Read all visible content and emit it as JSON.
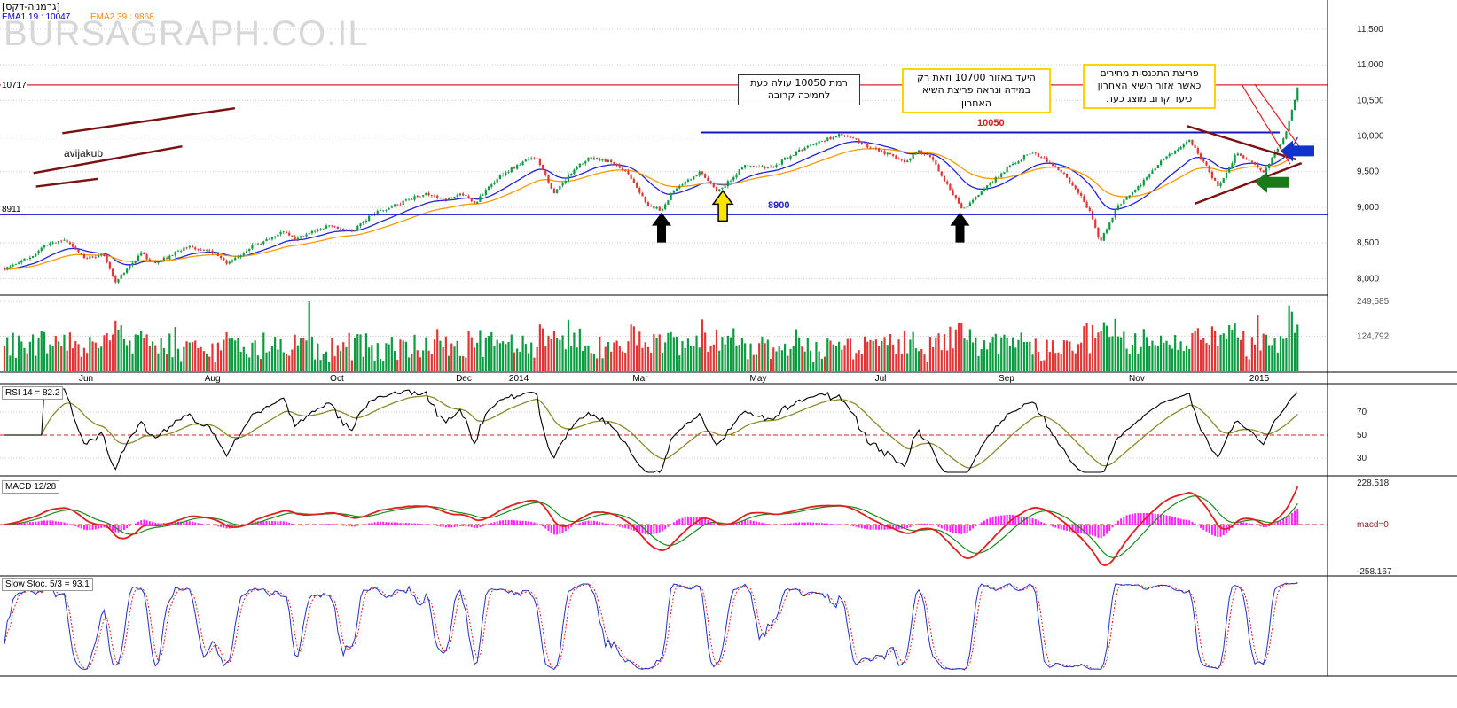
{
  "header": {
    "instrument": "[גרמניה-דקס]",
    "ema1": "EMA1 19 : 10047",
    "ema2": "EMA2 39 : 9868"
  },
  "watermark": "BURSAGRAPH.CO.IL",
  "author_tag": "avijakub",
  "annotation_boxes": {
    "support_note": "רמת 10050 עולה כעת\nלתמיכה קרובה",
    "target_note": "היעד באזור 10700 וזאת רק\nבמידה ונראה פריצת השיא\nהאחרון",
    "breakout_note": "פריצת התכנסות מחירים\nכאשר אזור השיא האחרון\nכיעד קרוב מוצג כעת"
  },
  "price_labels": {
    "resistance_tag": "10717",
    "support_tag": "8911",
    "level_10050": "10050",
    "level_8900": "8900"
  },
  "panel_labels": {
    "rsi": "RSI 14 = 82.2",
    "macd": "MACD 12/28",
    "stoch": "Slow Stoc. 5/3 = 93.1"
  },
  "chart_data": {
    "type": "candlestick",
    "instrument": "Germany DAX (גרמניה-דקס)",
    "indicators": {
      "ema1": {
        "period": 19,
        "last": 10047
      },
      "ema2": {
        "period": 39,
        "last": 9868
      },
      "rsi": {
        "period": 14,
        "last": 82.2,
        "levels": [
          70,
          50,
          30
        ]
      },
      "macd": {
        "fast": 12,
        "slow": 28,
        "signal": 9,
        "axis_max": 228.518,
        "axis_min": -258.167
      },
      "stoch": {
        "k": 5,
        "d": 3,
        "last": 93.1
      }
    },
    "levels": {
      "resistance": 10717,
      "mid_blue": 10050,
      "support_blue": 8900,
      "support_tag_value": 8911
    },
    "y_range": [
      7780,
      11910
    ],
    "volume_axis_max": 249585,
    "n_bars": 455,
    "t_end": 0.982,
    "noise_seed": 7,
    "price_anchors": [
      [
        0.0,
        8150
      ],
      [
        0.02,
        8300
      ],
      [
        0.033,
        8480
      ],
      [
        0.046,
        8530
      ],
      [
        0.062,
        8280
      ],
      [
        0.075,
        8350
      ],
      [
        0.084,
        7950
      ],
      [
        0.104,
        8350
      ],
      [
        0.114,
        8200
      ],
      [
        0.138,
        8450
      ],
      [
        0.158,
        8360
      ],
      [
        0.17,
        8210
      ],
      [
        0.185,
        8420
      ],
      [
        0.199,
        8550
      ],
      [
        0.212,
        8650
      ],
      [
        0.222,
        8550
      ],
      [
        0.246,
        8750
      ],
      [
        0.263,
        8650
      ],
      [
        0.279,
        8900
      ],
      [
        0.3,
        9050
      ],
      [
        0.32,
        9200
      ],
      [
        0.333,
        9100
      ],
      [
        0.347,
        9200
      ],
      [
        0.357,
        9050
      ],
      [
        0.374,
        9400
      ],
      [
        0.39,
        9600
      ],
      [
        0.404,
        9720
      ],
      [
        0.417,
        9180
      ],
      [
        0.431,
        9500
      ],
      [
        0.444,
        9700
      ],
      [
        0.461,
        9640
      ],
      [
        0.472,
        9500
      ],
      [
        0.488,
        9050
      ],
      [
        0.499,
        8950
      ],
      [
        0.508,
        9250
      ],
      [
        0.529,
        9500
      ],
      [
        0.542,
        9220
      ],
      [
        0.553,
        9420
      ],
      [
        0.562,
        9580
      ],
      [
        0.582,
        9550
      ],
      [
        0.603,
        9800
      ],
      [
        0.623,
        9950
      ],
      [
        0.636,
        10020
      ],
      [
        0.653,
        9880
      ],
      [
        0.67,
        9750
      ],
      [
        0.684,
        9650
      ],
      [
        0.694,
        9800
      ],
      [
        0.704,
        9700
      ],
      [
        0.717,
        9280
      ],
      [
        0.727,
        8960
      ],
      [
        0.744,
        9250
      ],
      [
        0.764,
        9600
      ],
      [
        0.781,
        9780
      ],
      [
        0.795,
        9600
      ],
      [
        0.805,
        9450
      ],
      [
        0.815,
        9230
      ],
      [
        0.825,
        8900
      ],
      [
        0.832,
        8520
      ],
      [
        0.845,
        9000
      ],
      [
        0.862,
        9300
      ],
      [
        0.879,
        9650
      ],
      [
        0.899,
        9950
      ],
      [
        0.912,
        9600
      ],
      [
        0.922,
        9260
      ],
      [
        0.936,
        9780
      ],
      [
        0.946,
        9640
      ],
      [
        0.956,
        9480
      ],
      [
        0.966,
        9800
      ],
      [
        0.973,
        10050
      ],
      [
        0.978,
        10380
      ],
      [
        0.982,
        10680
      ]
    ],
    "volume_spikes": [
      [
        0.2323,
        249585
      ],
      [
        0.53,
        185000
      ],
      [
        0.835,
        175000
      ],
      [
        0.952,
        200000
      ],
      [
        0.976,
        235000
      ]
    ],
    "axes": {
      "price_ticks": [
        {
          "v": 11500,
          "label": "11,500"
        },
        {
          "v": 11000,
          "label": "11,000"
        },
        {
          "v": 10500,
          "label": "10,500"
        },
        {
          "v": 10000,
          "label": "10,000"
        },
        {
          "v": 9500,
          "label": "9,500"
        },
        {
          "v": 9000,
          "label": "9,000"
        },
        {
          "v": 8500,
          "label": "8,500"
        },
        {
          "v": 8000,
          "label": "8,000"
        }
      ],
      "volume_ticks": [
        {
          "v": 249585,
          "label": "249,585"
        },
        {
          "v": 124792,
          "label": "124,792"
        }
      ],
      "rsi_ticks": [
        {
          "v": 70,
          "label": "70"
        },
        {
          "v": 50,
          "label": "50"
        },
        {
          "v": 30,
          "label": "30"
        }
      ],
      "macd_ticks": [
        {
          "v": 228.518,
          "label": "228.518"
        },
        {
          "v": 0,
          "label": "macd=0"
        },
        {
          "v": -258.167,
          "label": "-258.167"
        }
      ],
      "x_ticks": [
        {
          "t": 0.062,
          "label": "Jun"
        },
        {
          "t": 0.158,
          "label": "Aug"
        },
        {
          "t": 0.2525,
          "label": "Oct"
        },
        {
          "t": 0.3488,
          "label": "Dec"
        },
        {
          "t": 0.3906,
          "label": "2014"
        },
        {
          "t": 0.4828,
          "label": "Mar"
        },
        {
          "t": 0.5724,
          "label": "May"
        },
        {
          "t": 0.6653,
          "label": "Jul"
        },
        {
          "t": 0.7609,
          "label": "Sep"
        },
        {
          "t": 0.8599,
          "label": "Nov"
        },
        {
          "t": 0.9529,
          "label": "2015"
        }
      ]
    },
    "overlays": {
      "level_10050_span": [
        0.5286,
        0.9684
      ],
      "trend_lines_dark_red": [
        [
          [
            0.044,
            10040
          ],
          [
            0.175,
            10390
          ]
        ],
        [
          [
            0.022,
            9480
          ],
          [
            0.135,
            9855
          ]
        ],
        [
          [
            0.024,
            9290
          ],
          [
            0.071,
            9400
          ]
        ],
        [
          [
            0.898,
            10140
          ],
          [
            0.981,
            9670
          ]
        ],
        [
          [
            0.904,
            9050
          ],
          [
            0.985,
            9620
          ]
        ]
      ],
      "thin_red_lines": [
        [
          [
            0.9394,
            10727
          ],
          [
            0.9764,
            9606
          ]
        ],
        [
          [
            0.9495,
            10727
          ],
          [
            0.9865,
            9768
          ]
        ]
      ],
      "arrows": [
        {
          "name": "black-up-arrow-1",
          "type": "up",
          "color": "#000000",
          "t": 0.499,
          "v": 8930
        },
        {
          "name": "black-up-arrow-2",
          "type": "up",
          "color": "#000000",
          "t": 0.7256,
          "v": 8930
        },
        {
          "name": "yellow-up-arrow",
          "type": "up",
          "color": "#ffe400",
          "outline": "#000000",
          "t": 0.5455,
          "v": 9230
        },
        {
          "name": "blue-left-arrow",
          "type": "left",
          "color": "#1133cc",
          "t": 0.969,
          "v": 9790
        },
        {
          "name": "green-left-arrow",
          "type": "left",
          "color": "#1a7a1a",
          "t": 0.9495,
          "v": 9350
        }
      ]
    },
    "colors": {
      "candle_up": "#0c9b40",
      "candle_down": "#e03535",
      "ema1": "#2222dd",
      "ema2": "#ff9900",
      "resistance": "#e02020",
      "level_blue": "#1515cc",
      "trend_dark_red": "#7a1010",
      "thin_red": "#e02020",
      "rsi": "#000000",
      "rsi_smooth": "#8a8a2a",
      "macd": "#e02020",
      "macd_signal": "#1a8a1a",
      "histogram": "#ff22ff",
      "stoch_k": "#2233bb",
      "stoch_d": "#dd2222",
      "grid": "#cccccc",
      "dashed_red": "#cc2222"
    }
  }
}
